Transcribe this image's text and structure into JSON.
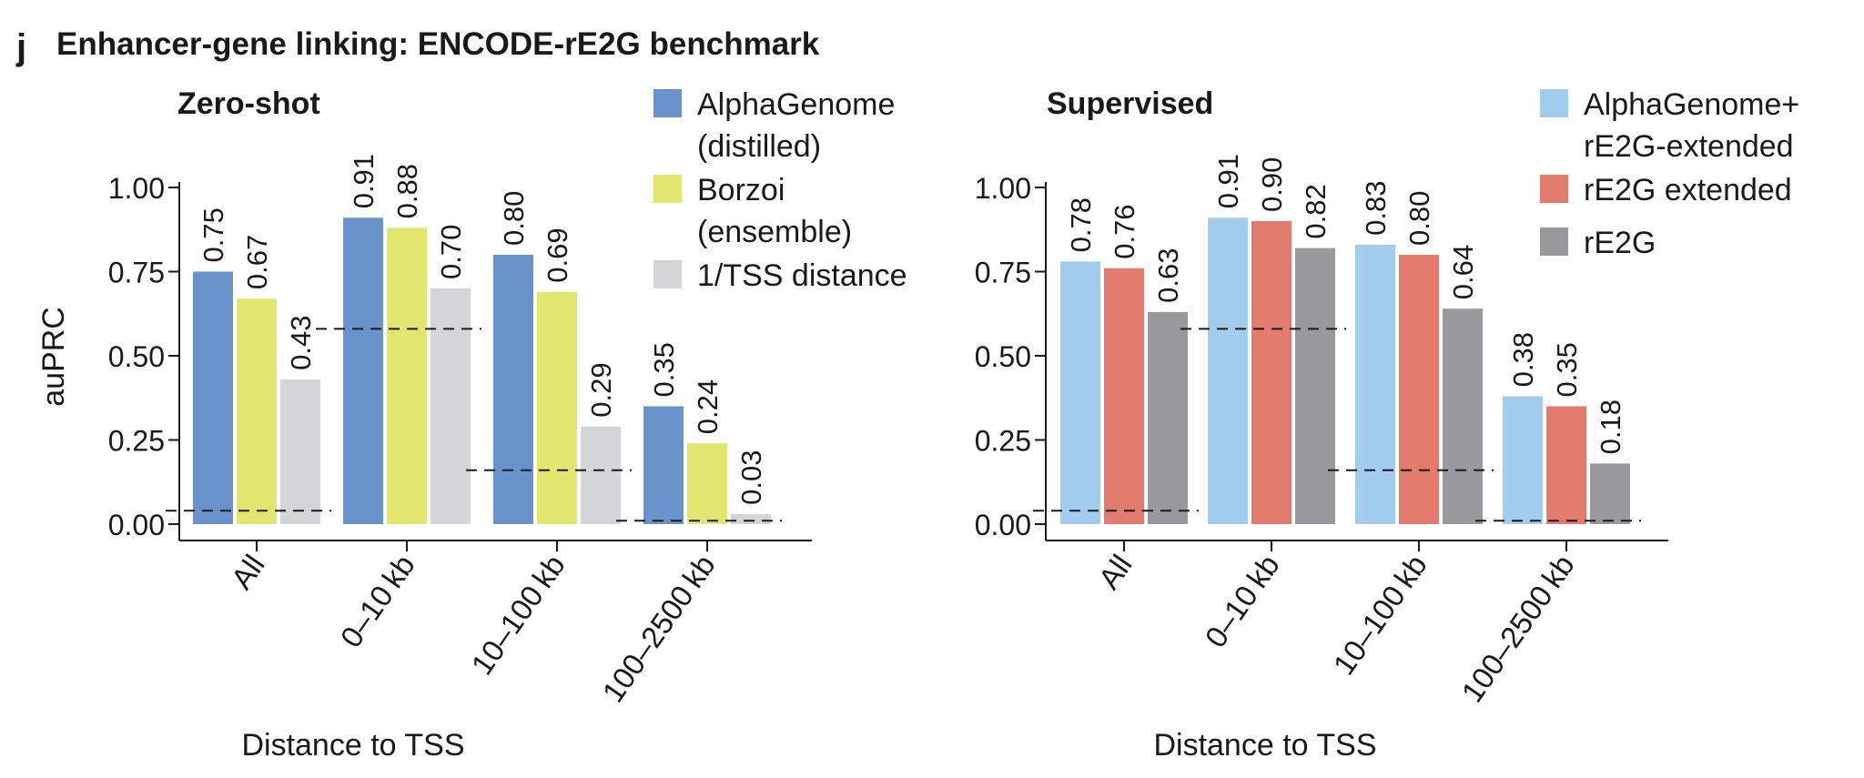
{
  "figure": {
    "panel_letter": "j",
    "title": "Enhancer-gene linking: ENCODE-rE2G benchmark"
  },
  "chart_data": [
    {
      "type": "bar",
      "title": "Zero-shot",
      "xlabel": "Distance to TSS",
      "ylabel": "auPRC",
      "ylim": [
        0,
        1
      ],
      "yticks": [
        0,
        0.25,
        0.5,
        0.75,
        1.0
      ],
      "ytick_labels": [
        "0.00",
        "0.25",
        "0.50",
        "0.75",
        "1.00"
      ],
      "categories": [
        "All",
        "0–10 kb",
        "10–100 kb",
        "100–2500 kb"
      ],
      "series": [
        {
          "name": "AlphaGenome (distilled)",
          "legend_lines": [
            "AlphaGenome",
            "(distilled)"
          ],
          "color": "#6a93cb",
          "values": [
            0.75,
            0.91,
            0.8,
            0.35
          ]
        },
        {
          "name": "Borzoi (ensemble)",
          "legend_lines": [
            "Borzoi",
            "(ensemble)"
          ],
          "color": "#e2e66e",
          "values": [
            0.67,
            0.88,
            0.69,
            0.24
          ]
        },
        {
          "name": "1/TSS distance",
          "legend_lines": [
            "1/TSS distance"
          ],
          "color": "#d3d5d7",
          "values": [
            0.43,
            0.7,
            0.29,
            0.03
          ]
        }
      ],
      "value_labels": [
        [
          "0.75",
          "0.91",
          "0.80",
          "0.35"
        ],
        [
          "0.67",
          "0.88",
          "0.69",
          "0.24"
        ],
        [
          "0.43",
          "0.70",
          "0.29",
          "0.03"
        ]
      ],
      "baselines": [
        0.04,
        0.58,
        0.16,
        0.01
      ],
      "baseline_style": "dashed",
      "legend": "top-right",
      "grid": false
    },
    {
      "type": "bar",
      "title": "Supervised",
      "xlabel": "Distance to TSS",
      "ylabel": "",
      "ylim": [
        0,
        1
      ],
      "yticks": [
        0,
        0.25,
        0.5,
        0.75,
        1.0
      ],
      "ytick_labels": [
        "0.00",
        "0.25",
        "0.50",
        "0.75",
        "1.00"
      ],
      "categories": [
        "All",
        "0–10 kb",
        "10–100 kb",
        "100–2500 kb"
      ],
      "series": [
        {
          "name": "AlphaGenome+ rE2G-extended",
          "legend_lines": [
            "AlphaGenome+",
            "rE2G-extended"
          ],
          "color": "#a3cdee",
          "values": [
            0.78,
            0.91,
            0.83,
            0.38
          ]
        },
        {
          "name": "rE2G extended",
          "legend_lines": [
            "rE2G extended"
          ],
          "color": "#e37c6f",
          "values": [
            0.76,
            0.9,
            0.8,
            0.35
          ]
        },
        {
          "name": "rE2G",
          "legend_lines": [
            "rE2G"
          ],
          "color": "#98999c",
          "values": [
            0.63,
            0.82,
            0.64,
            0.18
          ]
        }
      ],
      "value_labels": [
        [
          "0.78",
          "0.91",
          "0.83",
          "0.38"
        ],
        [
          "0.76",
          "0.90",
          "0.80",
          "0.35"
        ],
        [
          "0.63",
          "0.82",
          "0.64",
          "0.18"
        ]
      ],
      "baselines": [
        0.04,
        0.58,
        0.16,
        0.01
      ],
      "baseline_style": "dashed",
      "legend": "top-right",
      "grid": false
    }
  ]
}
